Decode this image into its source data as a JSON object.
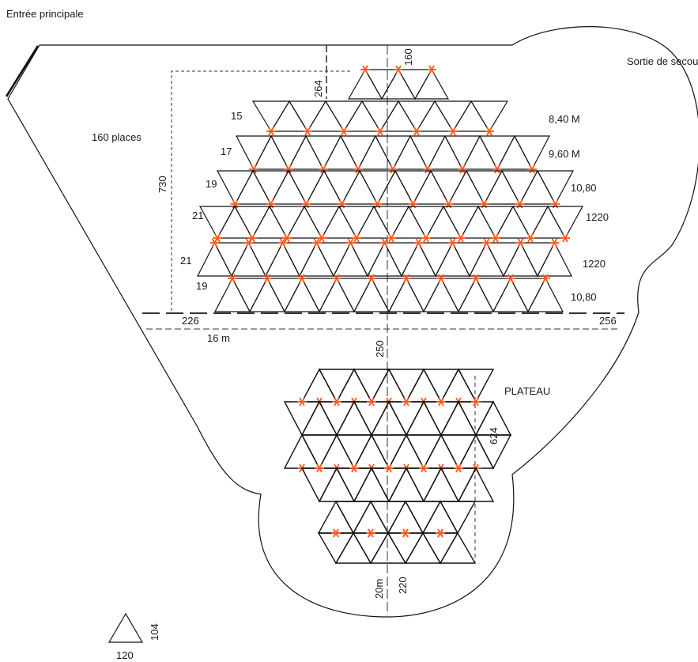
{
  "labels": {
    "main_entrance": "Entrée principale",
    "emergency_exit": "Sortie de secour",
    "places": "160 places",
    "plateau": "PLATEAU"
  },
  "dimensions": {
    "top_offset": "160",
    "top_gap": "264",
    "depth": "730",
    "left_margin": "226",
    "right_margin": "256",
    "width_m": "16 m",
    "gap_stage": "250",
    "stage_depth": "624",
    "stage_m": "20m",
    "stage_width": "220",
    "module_height": "104",
    "module_base": "120"
  },
  "rows": [
    {
      "count": "15",
      "width": "8,40 M"
    },
    {
      "count": "17",
      "width": "9,60 M"
    },
    {
      "count": "19",
      "width": "10,80"
    },
    {
      "count": "21",
      "width": "1220"
    },
    {
      "count": "21",
      "width": "1220"
    },
    {
      "count": "19",
      "width": "10,80"
    }
  ],
  "colors": {
    "line": "#111111",
    "joint": "#ff5a1f",
    "dash": "#333333"
  }
}
